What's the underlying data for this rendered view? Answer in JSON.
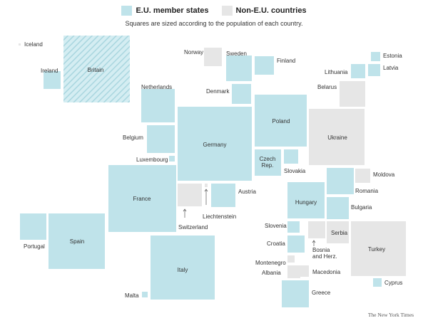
{
  "colors": {
    "eu": "#bfe3ea",
    "non_eu": "#e6e6e6",
    "text": "#333333"
  },
  "legend": {
    "eu_label": "E.U. member states",
    "non_eu_label": "Non-E.U. countries",
    "subtitle": "Squares are sized according to the population of each country."
  },
  "credit": "The New York Times",
  "countries": [
    {
      "id": "iceland",
      "name": "Iceland",
      "group": "non_eu"
    },
    {
      "id": "ireland",
      "name": "Ireland",
      "group": "eu"
    },
    {
      "id": "britain",
      "name": "Britain",
      "group": "eu",
      "pattern": "hatched"
    },
    {
      "id": "norway",
      "name": "Norway",
      "group": "non_eu"
    },
    {
      "id": "sweden",
      "name": "Sweden",
      "group": "eu"
    },
    {
      "id": "finland",
      "name": "Finland",
      "group": "eu"
    },
    {
      "id": "denmark",
      "name": "Denmark",
      "group": "eu"
    },
    {
      "id": "estonia",
      "name": "Estonia",
      "group": "eu"
    },
    {
      "id": "latvia",
      "name": "Latvia",
      "group": "eu"
    },
    {
      "id": "lithuania",
      "name": "Lithuania",
      "group": "eu"
    },
    {
      "id": "belarus",
      "name": "Belarus",
      "group": "non_eu"
    },
    {
      "id": "netherlands",
      "name": "Netherlands",
      "group": "eu"
    },
    {
      "id": "belgium",
      "name": "Belgium",
      "group": "eu"
    },
    {
      "id": "luxembourg",
      "name": "Luxembourg",
      "group": "eu"
    },
    {
      "id": "germany",
      "name": "Germany",
      "group": "eu"
    },
    {
      "id": "poland",
      "name": "Poland",
      "group": "eu"
    },
    {
      "id": "ukraine",
      "name": "Ukraine",
      "group": "non_eu"
    },
    {
      "id": "czech",
      "name": "Czech Rep.",
      "group": "eu"
    },
    {
      "id": "slovakia",
      "name": "Slovakia",
      "group": "eu"
    },
    {
      "id": "moldova",
      "name": "Moldova",
      "group": "non_eu"
    },
    {
      "id": "romania",
      "name": "Romania",
      "group": "eu"
    },
    {
      "id": "bulgaria",
      "name": "Bulgaria",
      "group": "eu"
    },
    {
      "id": "france",
      "name": "France",
      "group": "eu"
    },
    {
      "id": "switzerland",
      "name": "Switzerland",
      "group": "non_eu"
    },
    {
      "id": "liechtenstein",
      "name": "Liechtenstein",
      "group": "non_eu"
    },
    {
      "id": "austria",
      "name": "Austria",
      "group": "eu"
    },
    {
      "id": "hungary",
      "name": "Hungary",
      "group": "eu"
    },
    {
      "id": "slovenia",
      "name": "Slovenia",
      "group": "eu"
    },
    {
      "id": "croatia",
      "name": "Croatia",
      "group": "eu"
    },
    {
      "id": "bosnia",
      "name": "Bosnia and Herz.",
      "group": "non_eu"
    },
    {
      "id": "serbia",
      "name": "Serbia",
      "group": "non_eu"
    },
    {
      "id": "montenegro",
      "name": "Montenegro",
      "group": "non_eu"
    },
    {
      "id": "albania",
      "name": "Albania",
      "group": "non_eu"
    },
    {
      "id": "macedonia",
      "name": "Macedonia",
      "group": "non_eu"
    },
    {
      "id": "greece",
      "name": "Greece",
      "group": "eu"
    },
    {
      "id": "turkey",
      "name": "Turkey",
      "group": "non_eu"
    },
    {
      "id": "cyprus",
      "name": "Cyprus",
      "group": "eu"
    },
    {
      "id": "portugal",
      "name": "Portugal",
      "group": "eu"
    },
    {
      "id": "spain",
      "name": "Spain",
      "group": "eu"
    },
    {
      "id": "italy",
      "name": "Italy",
      "group": "eu"
    },
    {
      "id": "malta",
      "name": "Malta",
      "group": "eu"
    }
  ]
}
